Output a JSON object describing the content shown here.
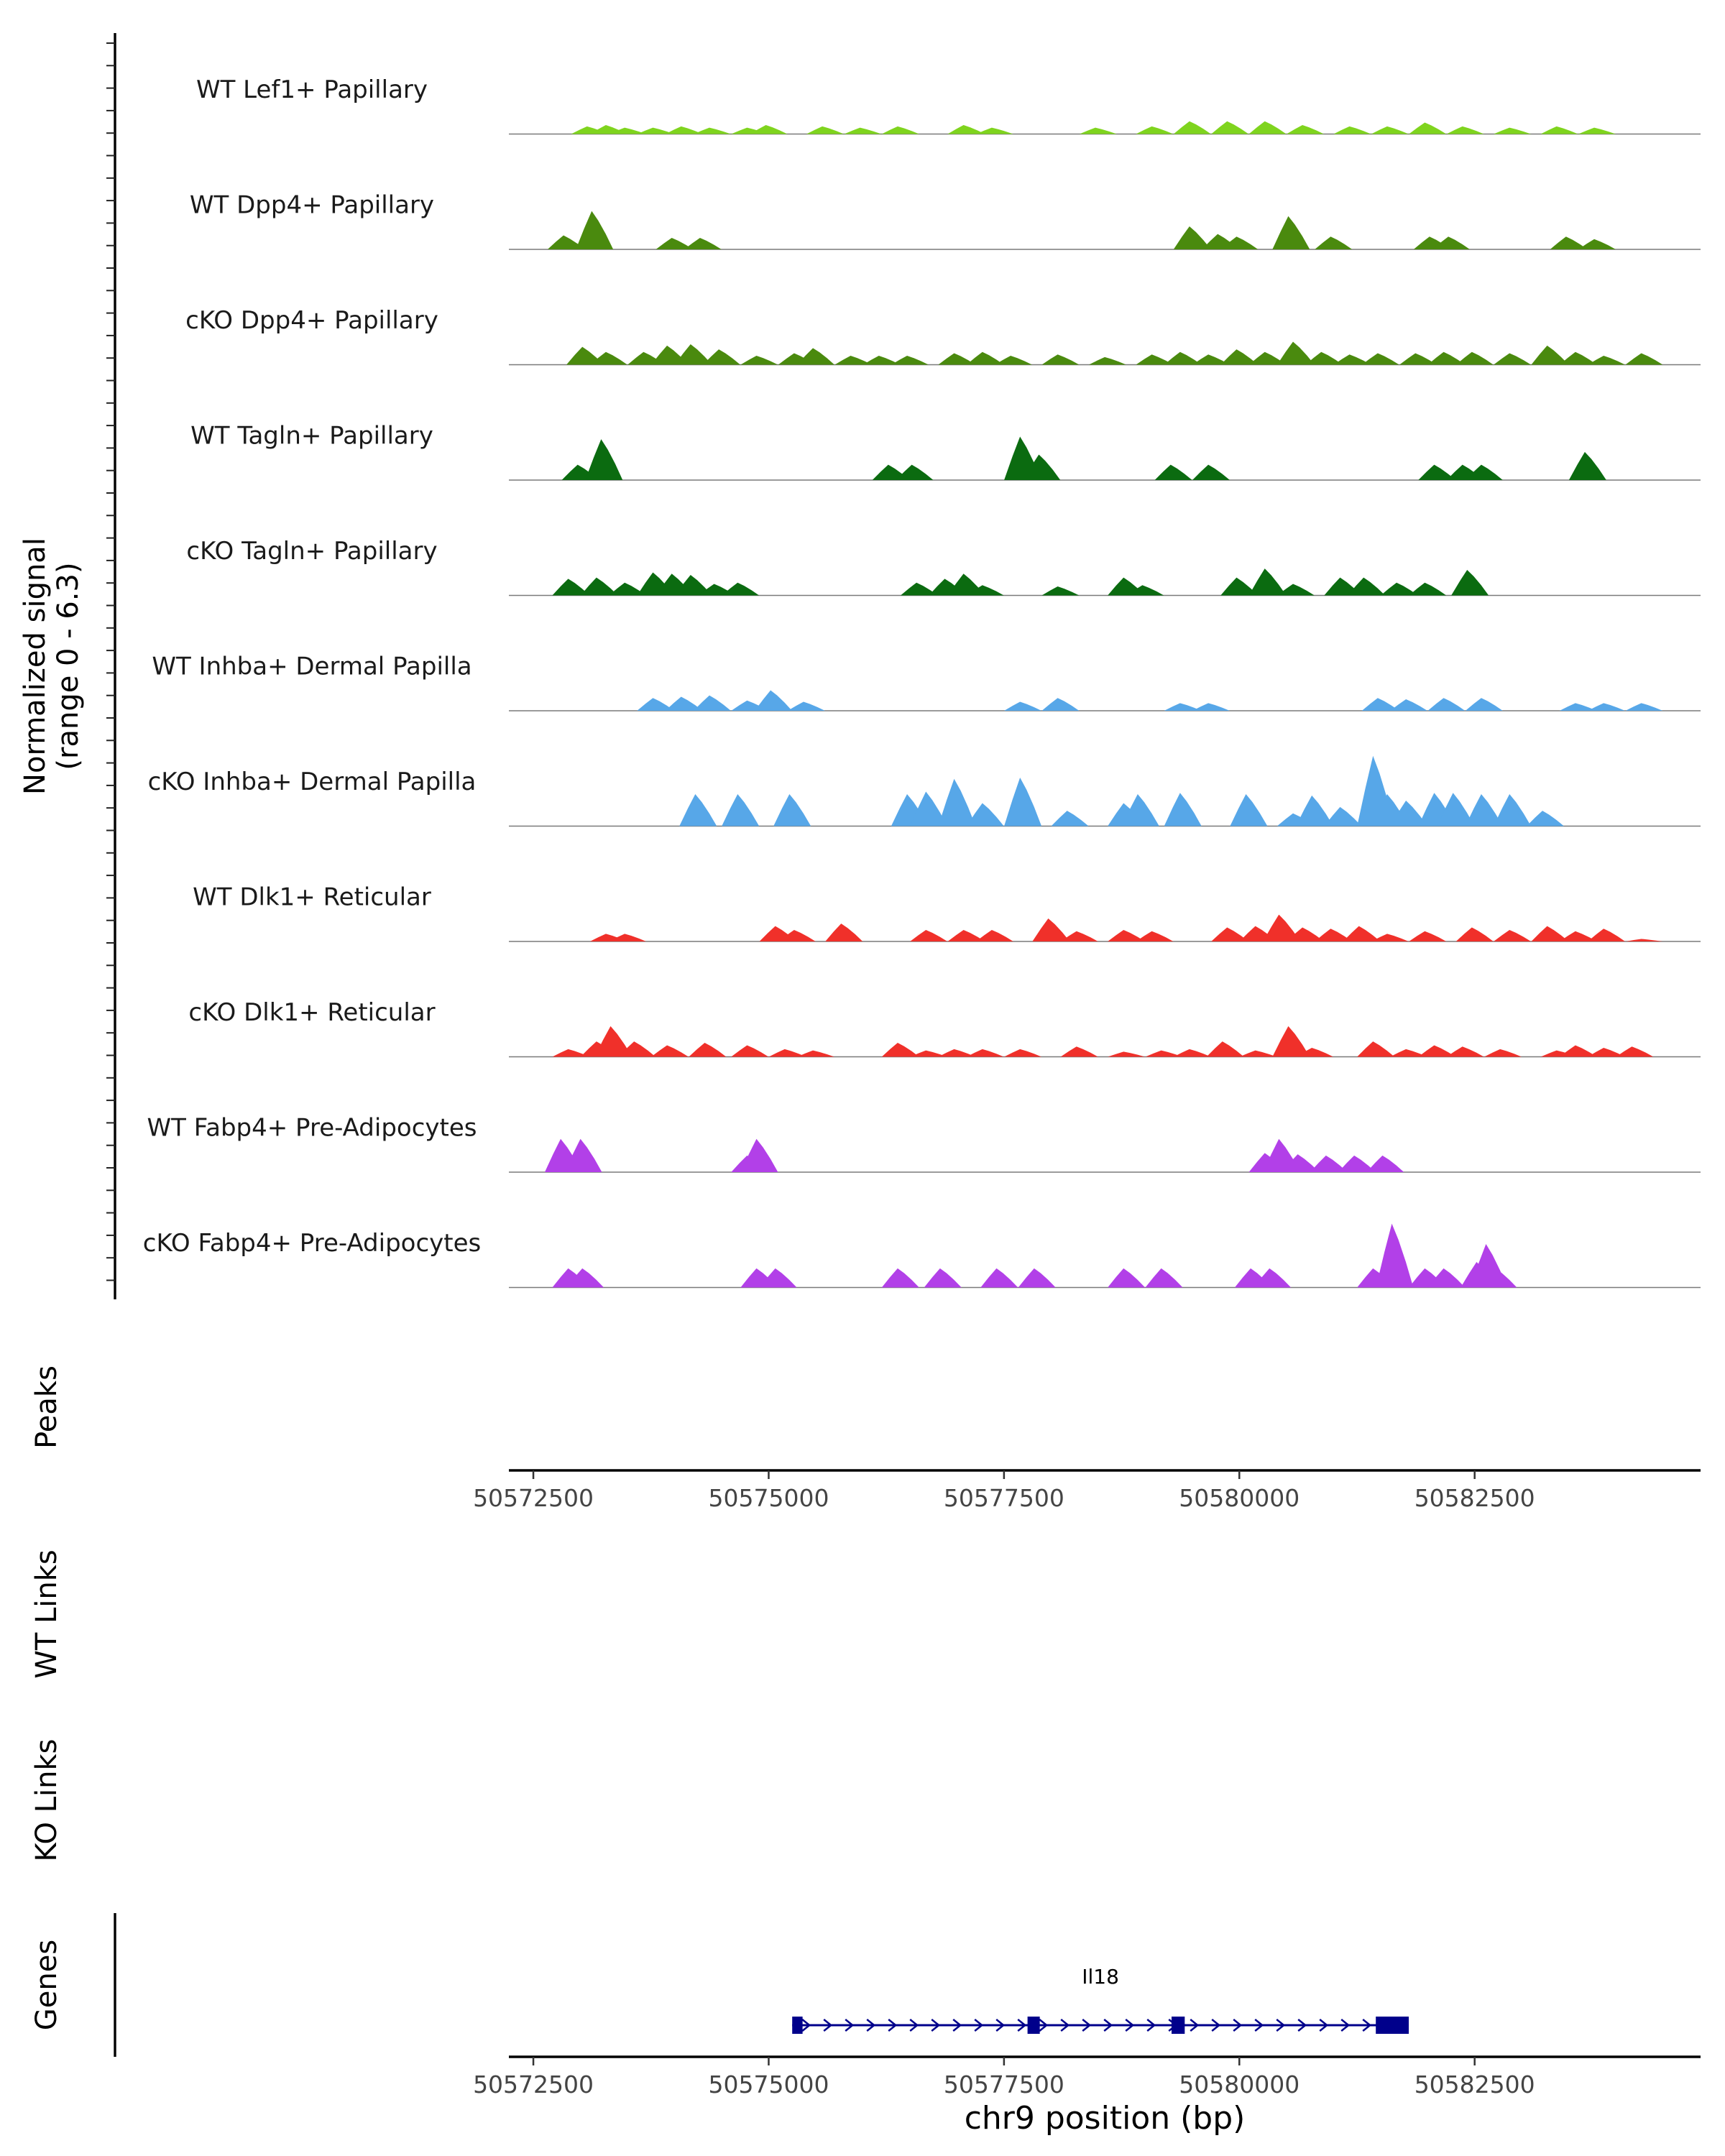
{
  "chart_data": {
    "type": "area",
    "title": "",
    "ylabel_line1": "Normalized signal",
    "ylabel_line2": "(range 0 - 6.3)",
    "ylim": [
      0,
      6.3
    ],
    "xlim": [
      50572240,
      50584900
    ],
    "xlabel": "chr9 position (bp)",
    "x_ticks": [
      50572500,
      50575000,
      50577500,
      50580000,
      50582500
    ],
    "x_tick_labels": [
      "50572500",
      "50575000",
      "50577500",
      "50580000",
      "50582500"
    ],
    "tracks": [
      {
        "name": "WT Lef1+ Papillary",
        "color": "#7FD41E",
        "peaks": [
          [
            50573100,
            0.6
          ],
          [
            50573300,
            0.7
          ],
          [
            50573500,
            0.5
          ],
          [
            50573800,
            0.5
          ],
          [
            50574100,
            0.6
          ],
          [
            50574400,
            0.5
          ],
          [
            50574800,
            0.5
          ],
          [
            50575000,
            0.7
          ],
          [
            50575600,
            0.6
          ],
          [
            50576000,
            0.5
          ],
          [
            50576400,
            0.6
          ],
          [
            50577100,
            0.7
          ],
          [
            50577400,
            0.5
          ],
          [
            50578500,
            0.5
          ],
          [
            50579100,
            0.6
          ],
          [
            50579500,
            1.0
          ],
          [
            50579900,
            1.0
          ],
          [
            50580300,
            1.0
          ],
          [
            50580700,
            0.7
          ],
          [
            50581200,
            0.6
          ],
          [
            50581600,
            0.6
          ],
          [
            50582000,
            0.9
          ],
          [
            50582400,
            0.6
          ],
          [
            50582900,
            0.5
          ],
          [
            50583400,
            0.6
          ],
          [
            50583800,
            0.5
          ]
        ]
      },
      {
        "name": "WT Dpp4+ Papillary",
        "color": "#4A8A0E",
        "peaks": [
          [
            50572850,
            1.1
          ],
          [
            50573150,
            3.0
          ],
          [
            50574000,
            0.9
          ],
          [
            50574300,
            0.9
          ],
          [
            50576100,
            0.0
          ],
          [
            50579500,
            1.8
          ],
          [
            50579800,
            1.2
          ],
          [
            50580000,
            1.0
          ],
          [
            50580550,
            2.6
          ],
          [
            50581000,
            1.0
          ],
          [
            50582050,
            1.0
          ],
          [
            50582250,
            1.0
          ],
          [
            50583500,
            1.0
          ],
          [
            50583800,
            0.8
          ]
        ]
      },
      {
        "name": "cKO Dpp4+ Papillary",
        "color": "#4A8A0E",
        "peaks": [
          [
            50573050,
            1.4
          ],
          [
            50573300,
            1.0
          ],
          [
            50573700,
            1.0
          ],
          [
            50573950,
            1.5
          ],
          [
            50574200,
            1.6
          ],
          [
            50574500,
            1.2
          ],
          [
            50574900,
            0.7
          ],
          [
            50575300,
            0.9
          ],
          [
            50575500,
            1.3
          ],
          [
            50575900,
            0.7
          ],
          [
            50576200,
            0.7
          ],
          [
            50576500,
            0.7
          ],
          [
            50577000,
            0.9
          ],
          [
            50577300,
            1.0
          ],
          [
            50577600,
            0.7
          ],
          [
            50578100,
            0.8
          ],
          [
            50578600,
            0.6
          ],
          [
            50579100,
            0.8
          ],
          [
            50579400,
            1.0
          ],
          [
            50579700,
            0.8
          ],
          [
            50580000,
            1.2
          ],
          [
            50580300,
            1.0
          ],
          [
            50580600,
            1.8
          ],
          [
            50580900,
            1.0
          ],
          [
            50581200,
            0.8
          ],
          [
            50581500,
            0.9
          ],
          [
            50581900,
            0.9
          ],
          [
            50582200,
            1.0
          ],
          [
            50582500,
            1.0
          ],
          [
            50582900,
            0.9
          ],
          [
            50583300,
            1.5
          ],
          [
            50583600,
            1.0
          ],
          [
            50583900,
            0.7
          ],
          [
            50584300,
            0.9
          ]
        ]
      },
      {
        "name": "WT Tagln+ Papillary",
        "color": "#0B6B10",
        "peaks": [
          [
            50573000,
            1.2
          ],
          [
            50573250,
            3.2
          ],
          [
            50576300,
            1.2
          ],
          [
            50576550,
            1.2
          ],
          [
            50577700,
            3.4
          ],
          [
            50577900,
            2.0
          ],
          [
            50579300,
            1.2
          ],
          [
            50579700,
            1.2
          ],
          [
            50582100,
            1.2
          ],
          [
            50582400,
            1.2
          ],
          [
            50582600,
            1.2
          ],
          [
            50583700,
            2.2
          ]
        ]
      },
      {
        "name": "cKO Tagln+ Papillary",
        "color": "#0B6B10",
        "peaks": [
          [
            50572900,
            1.3
          ],
          [
            50573200,
            1.4
          ],
          [
            50573500,
            1.0
          ],
          [
            50573800,
            1.8
          ],
          [
            50574000,
            1.7
          ],
          [
            50574200,
            1.6
          ],
          [
            50574450,
            0.9
          ],
          [
            50574700,
            1.0
          ],
          [
            50576600,
            1.0
          ],
          [
            50576900,
            1.3
          ],
          [
            50577100,
            1.7
          ],
          [
            50577300,
            0.8
          ],
          [
            50578100,
            0.7
          ],
          [
            50578800,
            1.4
          ],
          [
            50579000,
            0.8
          ],
          [
            50580000,
            1.4
          ],
          [
            50580300,
            2.1
          ],
          [
            50580600,
            0.9
          ],
          [
            50581100,
            1.4
          ],
          [
            50581350,
            1.4
          ],
          [
            50581700,
            1.0
          ],
          [
            50582000,
            1.0
          ],
          [
            50582450,
            2.0
          ]
        ]
      },
      {
        "name": "WT Inhba+ Dermal Papilla",
        "color": "#57A7E8",
        "peaks": [
          [
            50573800,
            1.0
          ],
          [
            50574100,
            1.1
          ],
          [
            50574400,
            1.2
          ],
          [
            50574800,
            0.8
          ],
          [
            50575050,
            1.6
          ],
          [
            50575400,
            0.7
          ],
          [
            50577700,
            0.7
          ],
          [
            50578100,
            1.0
          ],
          [
            50579400,
            0.6
          ],
          [
            50579700,
            0.6
          ],
          [
            50581500,
            1.0
          ],
          [
            50581800,
            0.9
          ],
          [
            50582200,
            1.0
          ],
          [
            50582600,
            1.0
          ],
          [
            50583600,
            0.6
          ],
          [
            50583900,
            0.6
          ],
          [
            50584300,
            0.6
          ]
        ]
      },
      {
        "name": "cKO Inhba+ Dermal Papilla",
        "color": "#57A7E8",
        "peaks": [
          [
            50574250,
            2.5
          ],
          [
            50574700,
            2.5
          ],
          [
            50575250,
            2.5
          ],
          [
            50576500,
            2.5
          ],
          [
            50576700,
            2.7
          ],
          [
            50577000,
            3.7
          ],
          [
            50577300,
            1.8
          ],
          [
            50577700,
            3.8
          ],
          [
            50578200,
            1.2
          ],
          [
            50578800,
            1.8
          ],
          [
            50578950,
            2.5
          ],
          [
            50579400,
            2.6
          ],
          [
            50580100,
            2.5
          ],
          [
            50580600,
            1.0
          ],
          [
            50580800,
            2.4
          ],
          [
            50581100,
            1.5
          ],
          [
            50581450,
            5.5
          ],
          [
            50581600,
            2.5
          ],
          [
            50581800,
            2.0
          ],
          [
            50582100,
            2.6
          ],
          [
            50582300,
            2.6
          ],
          [
            50582600,
            2.5
          ],
          [
            50582900,
            2.5
          ],
          [
            50583250,
            1.2
          ]
        ]
      },
      {
        "name": "WT Dlk1+ Reticular",
        "color": "#F0302A",
        "peaks": [
          [
            50573300,
            0.6
          ],
          [
            50573500,
            0.6
          ],
          [
            50575100,
            1.2
          ],
          [
            50575300,
            0.9
          ],
          [
            50575800,
            1.4
          ],
          [
            50576700,
            0.9
          ],
          [
            50577100,
            0.9
          ],
          [
            50577400,
            0.9
          ],
          [
            50578000,
            1.8
          ],
          [
            50578300,
            0.8
          ],
          [
            50578800,
            0.9
          ],
          [
            50579100,
            0.8
          ],
          [
            50579900,
            1.1
          ],
          [
            50580200,
            1.2
          ],
          [
            50580450,
            2.1
          ],
          [
            50580700,
            1.1
          ],
          [
            50581000,
            1.0
          ],
          [
            50581300,
            1.2
          ],
          [
            50581600,
            0.6
          ],
          [
            50582000,
            0.8
          ],
          [
            50582500,
            1.1
          ],
          [
            50582900,
            0.9
          ],
          [
            50583300,
            1.2
          ],
          [
            50583600,
            0.8
          ],
          [
            50583900,
            1.0
          ],
          [
            50584300,
            0.2
          ]
        ]
      },
      {
        "name": "cKO Dlk1+ Reticular",
        "color": "#F0302A",
        "peaks": [
          [
            50572900,
            0.6
          ],
          [
            50573200,
            1.2
          ],
          [
            50573350,
            2.4
          ],
          [
            50573600,
            1.2
          ],
          [
            50573950,
            0.9
          ],
          [
            50574350,
            1.1
          ],
          [
            50574800,
            0.9
          ],
          [
            50575200,
            0.6
          ],
          [
            50575500,
            0.5
          ],
          [
            50576400,
            1.1
          ],
          [
            50576700,
            0.5
          ],
          [
            50577000,
            0.6
          ],
          [
            50577300,
            0.6
          ],
          [
            50577700,
            0.6
          ],
          [
            50578300,
            0.8
          ],
          [
            50578800,
            0.4
          ],
          [
            50579200,
            0.5
          ],
          [
            50579500,
            0.6
          ],
          [
            50579850,
            1.2
          ],
          [
            50580200,
            0.5
          ],
          [
            50580550,
            2.4
          ],
          [
            50580800,
            0.7
          ],
          [
            50581450,
            1.2
          ],
          [
            50581800,
            0.6
          ],
          [
            50582100,
            0.9
          ],
          [
            50582400,
            0.8
          ],
          [
            50582800,
            0.6
          ],
          [
            50583400,
            0.5
          ],
          [
            50583600,
            0.9
          ],
          [
            50583900,
            0.7
          ],
          [
            50584200,
            0.8
          ]
        ]
      },
      {
        "name": "WT Fabp4+ Pre-Adipocytes",
        "color": "#B240E8",
        "peaks": [
          [
            50572820,
            2.6
          ],
          [
            50573030,
            2.6
          ],
          [
            50574800,
            1.3
          ],
          [
            50574900,
            2.6
          ],
          [
            50580300,
            1.5
          ],
          [
            50580450,
            2.6
          ],
          [
            50580650,
            1.4
          ],
          [
            50580950,
            1.3
          ],
          [
            50581250,
            1.3
          ],
          [
            50581550,
            1.3
          ]
        ]
      },
      {
        "name": "cKO Fabp4+ Pre-Adipocytes",
        "color": "#B240E8",
        "peaks": [
          [
            50572900,
            1.5
          ],
          [
            50573050,
            1.5
          ],
          [
            50574900,
            1.5
          ],
          [
            50575100,
            1.5
          ],
          [
            50576400,
            1.5
          ],
          [
            50576850,
            1.5
          ],
          [
            50577450,
            1.5
          ],
          [
            50577850,
            1.5
          ],
          [
            50578800,
            1.5
          ],
          [
            50579200,
            1.5
          ],
          [
            50580150,
            1.5
          ],
          [
            50580350,
            1.5
          ],
          [
            50581450,
            1.5
          ],
          [
            50581650,
            5.0
          ],
          [
            50582000,
            1.5
          ],
          [
            50582200,
            1.5
          ],
          [
            50582550,
            2.0
          ],
          [
            50582650,
            3.4
          ],
          [
            50582750,
            1.5
          ]
        ]
      }
    ],
    "side_panels": [
      "Peaks",
      "WT Links",
      "KO Links",
      "Genes"
    ],
    "gene": {
      "name": "Il18",
      "start": 50575250,
      "end": 50581800,
      "strand": "+",
      "exons": [
        [
          50575250,
          50575360
        ],
        [
          50577750,
          50577880
        ],
        [
          50579280,
          50579420
        ],
        [
          50581450,
          50581800
        ]
      ]
    }
  }
}
